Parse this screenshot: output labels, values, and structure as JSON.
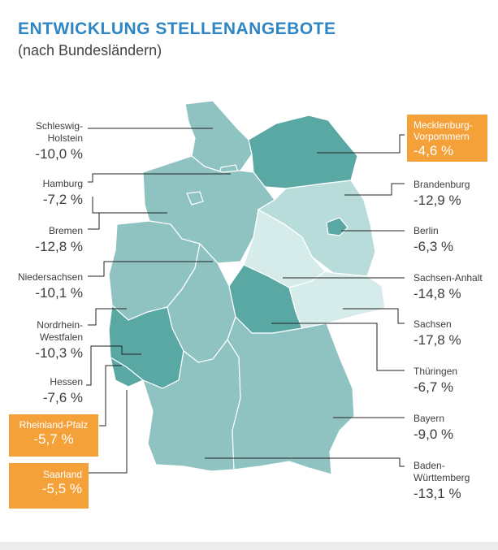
{
  "header": {
    "title": "ENTWICKLUNG STELLENANGEBOTE",
    "subtitle": "(nach Bundesländern)"
  },
  "colors": {
    "title": "#2f86c3",
    "state_medium": "#8fc3c1",
    "state_dark": "#5aa8a4",
    "state_light": "#b7dcda",
    "state_lightest": "#d6ecea",
    "highlight": "#f5a13a"
  },
  "states": [
    {
      "name": "Schleswig-Holstein",
      "name_lines": [
        "Schleswig-",
        "Holstein"
      ],
      "value": "-10,0 %"
    },
    {
      "name": "Hamburg",
      "name_lines": [
        "Hamburg"
      ],
      "value": "-7,2 %"
    },
    {
      "name": "Bremen",
      "name_lines": [
        "Bremen"
      ],
      "value": "-12,8 %"
    },
    {
      "name": "Niedersachsen",
      "name_lines": [
        "Niedersachsen"
      ],
      "value": "-10,1 %"
    },
    {
      "name": "Nordrhein-Westfalen",
      "name_lines": [
        "Nordrhein-",
        "Westfalen"
      ],
      "value": "-10,3 %"
    },
    {
      "name": "Hessen",
      "name_lines": [
        "Hessen"
      ],
      "value": "-7,6 %"
    },
    {
      "name": "Rheinland-Pfalz",
      "name_lines": [
        "Rheinland-Pfalz"
      ],
      "value": "-5,7 %"
    },
    {
      "name": "Saarland",
      "name_lines": [
        "Saarland"
      ],
      "value": "-5,5 %"
    },
    {
      "name": "Mecklenburg-Vorpommern",
      "name_lines": [
        "Mecklenburg-",
        "Vorpommern"
      ],
      "value": "-4,6 %"
    },
    {
      "name": "Brandenburg",
      "name_lines": [
        "Brandenburg"
      ],
      "value": "-12,9 %"
    },
    {
      "name": "Berlin",
      "name_lines": [
        "Berlin"
      ],
      "value": "-6,3 %"
    },
    {
      "name": "Sachsen-Anhalt",
      "name_lines": [
        "Sachsen-Anhalt"
      ],
      "value": "-14,8 %"
    },
    {
      "name": "Sachsen",
      "name_lines": [
        "Sachsen"
      ],
      "value": "-17,8 %"
    },
    {
      "name": "Thüringen",
      "name_lines": [
        "Thüringen"
      ],
      "value": "-6,7 %"
    },
    {
      "name": "Bayern",
      "name_lines": [
        "Bayern"
      ],
      "value": "-9,0 %"
    },
    {
      "name": "Baden-Württemberg",
      "name_lines": [
        "Baden-",
        "Württemberg"
      ],
      "value": "-13,1 %"
    }
  ]
}
